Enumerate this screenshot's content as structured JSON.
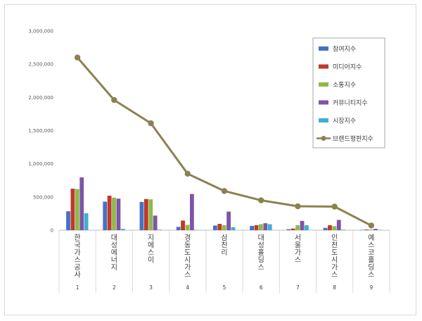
{
  "chart_data": {
    "type": "bar",
    "categories": [
      "한국가스공사",
      "대성에너지",
      "지에스이",
      "경동도시가스",
      "삼천리",
      "대성홀딩스",
      "서울가스",
      "인천도시가스",
      "예스코홀딩스"
    ],
    "indices": [
      "1",
      "2",
      "3",
      "4",
      "5",
      "6",
      "7",
      "8",
      "9"
    ],
    "yticks": [
      "0",
      "500,000",
      "1,000,000",
      "1,500,000",
      "2,000,000",
      "2,500,000",
      "3,000,000"
    ],
    "ylim": [
      0,
      3000000
    ],
    "grid": false,
    "legend_position": "top-right",
    "series": [
      {
        "name": "참여지수",
        "type": "bar",
        "color": "#4472c4",
        "values": [
          285000,
          430000,
          425000,
          50000,
          70000,
          65000,
          15000,
          35000,
          5000
        ]
      },
      {
        "name": "미디어지수",
        "type": "bar",
        "color": "#c0392b",
        "values": [
          625000,
          520000,
          470000,
          145000,
          95000,
          75000,
          25000,
          75000,
          10000
        ]
      },
      {
        "name": "소통지수",
        "type": "bar",
        "color": "#8fba47",
        "values": [
          620000,
          490000,
          465000,
          80000,
          75000,
          90000,
          75000,
          60000,
          10000
        ]
      },
      {
        "name": "커뮤니티지수",
        "type": "bar",
        "color": "#7d55a8",
        "values": [
          795000,
          475000,
          220000,
          545000,
          280000,
          105000,
          140000,
          155000,
          20000
        ]
      },
      {
        "name": "시장지수",
        "type": "bar",
        "color": "#3fb0d0",
        "values": [
          255000,
          20000,
          8000,
          5000,
          45000,
          90000,
          75000,
          8000,
          5000
        ]
      },
      {
        "name": "브랜드평판지수",
        "type": "line",
        "color": "#8c8151",
        "values": [
          2600000,
          1960000,
          1610000,
          850000,
          590000,
          450000,
          360000,
          355000,
          70000
        ]
      }
    ]
  }
}
